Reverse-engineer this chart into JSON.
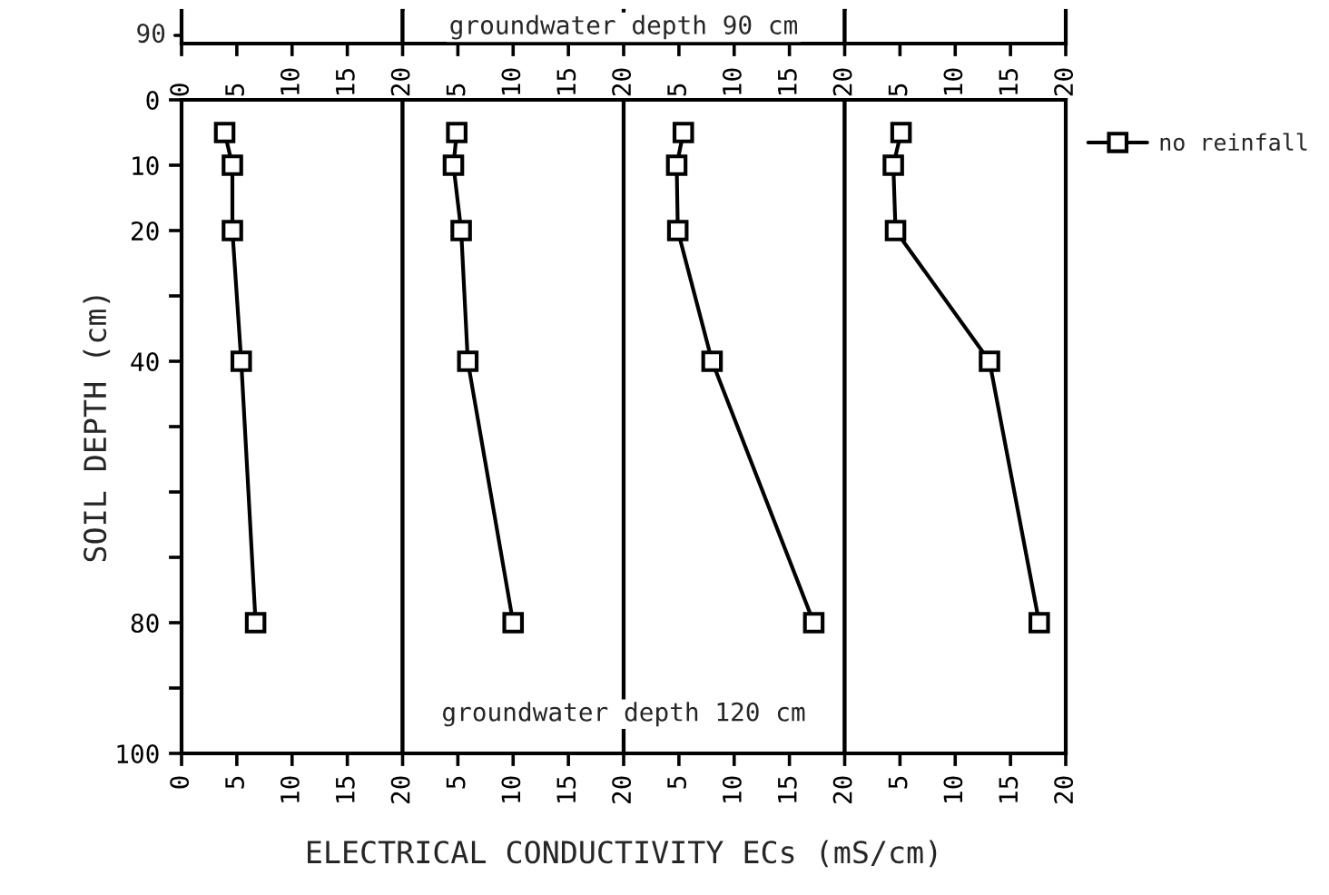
{
  "chart_data": [
    {
      "type": "line",
      "ylabel": "SOIL DEPTH (cm)",
      "annotations": [
        "90"
      ],
      "marker": "square",
      "xlim": [
        0,
        20
      ],
      "ylim": [
        100,
        0
      ],
      "x2lim": [
        0,
        20
      ],
      "xticks": [
        0,
        5,
        10,
        15,
        20
      ],
      "x2ticks": [
        0,
        5,
        10,
        15,
        20
      ],
      "yticks": [
        0,
        10,
        20,
        {
          "value": 30,
          "label": null
        },
        40,
        {
          "value": 50,
          "label": null
        },
        {
          "value": 60,
          "label": null
        },
        {
          "value": 70,
          "label": null
        },
        80,
        {
          "value": 90,
          "label": null
        },
        100
      ],
      "series": [
        {
          "color": "#000000",
          "x": [
            3.9,
            4.6,
            4.6,
            5.4,
            6.7
          ],
          "values": [
            5,
            10,
            20,
            40,
            80
          ]
        }
      ]
    },
    {
      "type": "line",
      "xlabel": "ELECTRICAL CONDUCTIVITY ECs (mS/cm)",
      "annotations": [
        "groundwater depth 90 cm",
        "groundwater depth 120 cm"
      ],
      "marker": "square",
      "tick_labels": "x",
      "xlim": [
        0,
        20
      ],
      "ylim": [
        100,
        0
      ],
      "x2lim": [
        0,
        20
      ],
      "xticks": [
        5,
        10,
        15,
        20
      ],
      "x2ticks": [
        5,
        10,
        15,
        20
      ],
      "series": [
        {
          "color": "#000000",
          "x": [
            4.9,
            4.6,
            5.3,
            5.9,
            10.0
          ],
          "values": [
            5,
            10,
            20,
            40,
            80
          ]
        }
      ]
    },
    {
      "type": "line",
      "marker": "square",
      "tick_labels": "x",
      "xlim": [
        0,
        20
      ],
      "ylim": [
        100,
        0
      ],
      "x2lim": [
        0,
        20
      ],
      "xticks": [
        5,
        10,
        15,
        20
      ],
      "x2ticks": [
        5,
        10,
        15,
        20
      ],
      "series": [
        {
          "color": "#000000",
          "x": [
            5.4,
            4.8,
            4.9,
            8.0,
            17.2
          ],
          "values": [
            5,
            10,
            20,
            40,
            80
          ]
        }
      ]
    },
    {
      "type": "line",
      "marker": "square",
      "tick_labels": "x",
      "legend": "top right",
      "xlim": [
        0,
        20
      ],
      "ylim": [
        100,
        0
      ],
      "x2lim": [
        0,
        20
      ],
      "xticks": [
        5,
        10,
        15,
        20
      ],
      "x2ticks": [
        5,
        10,
        15,
        20
      ],
      "series": [
        {
          "name": "no reinfall",
          "color": "#000000",
          "x": [
            5.1,
            4.4,
            4.6,
            13.1,
            17.6
          ],
          "values": [
            5,
            10,
            20,
            40,
            80
          ]
        }
      ]
    }
  ]
}
